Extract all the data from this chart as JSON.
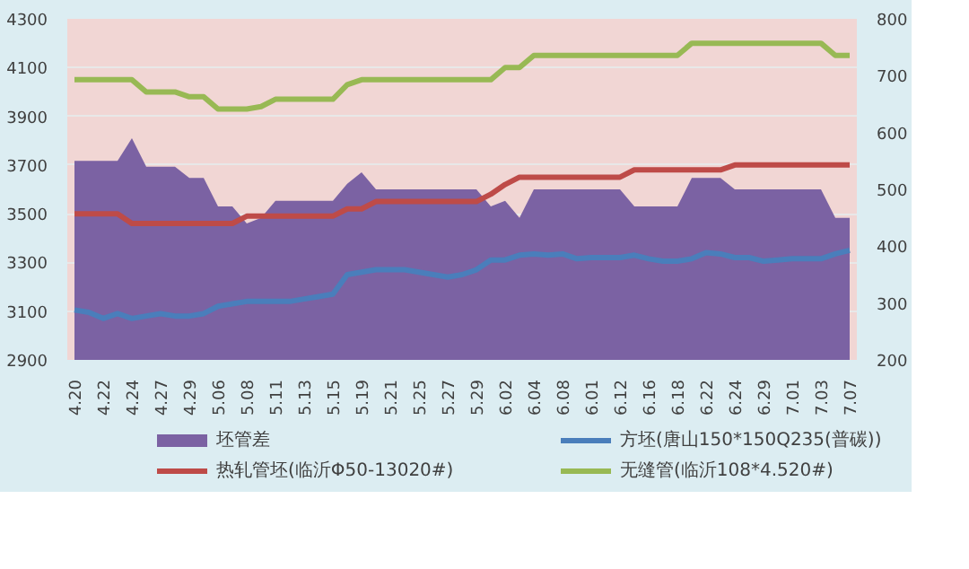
{
  "chart_data": {
    "type": "line",
    "categories": [
      "4.20",
      null,
      "4.22",
      null,
      "4.24",
      null,
      "4.27",
      null,
      "4.29",
      null,
      "5.06",
      null,
      "5.08",
      null,
      "5.11",
      null,
      "5.13",
      null,
      "5.15",
      null,
      "5.19",
      null,
      "5.21",
      null,
      "5.25",
      null,
      "5.27",
      null,
      "5.29",
      null,
      "6.02",
      null,
      "6.04",
      null,
      "6.08",
      null,
      "6.01",
      null,
      "6.12",
      null,
      "6.16",
      null,
      "6.18",
      null,
      "6.22",
      null,
      "6.24",
      null,
      "6.29",
      null,
      "7.01",
      null,
      "7.03",
      null,
      "7.07"
    ],
    "series": [
      {
        "name": "坯管差",
        "type": "area",
        "axis": "y2",
        "color": "#7b62a3",
        "values": [
          550,
          550,
          550,
          550,
          590,
          540,
          540,
          540,
          520,
          520,
          470,
          470,
          440,
          450,
          480,
          480,
          480,
          480,
          480,
          510,
          530,
          500,
          500,
          500,
          500,
          500,
          500,
          500,
          500,
          470,
          480,
          450,
          500,
          500,
          500,
          500,
          500,
          500,
          500,
          470,
          470,
          470,
          470,
          520,
          520,
          520,
          500,
          500,
          500,
          500,
          500,
          500,
          500,
          450,
          450
        ]
      },
      {
        "name": "方坯(唐山150*150Q235(普碳))",
        "color": "#4a7ebb",
        "values": [
          3105,
          3095,
          3070,
          3090,
          3070,
          3080,
          3090,
          3080,
          3080,
          3090,
          3120,
          3130,
          3140,
          3140,
          3140,
          3140,
          3150,
          3160,
          3170,
          3250,
          3260,
          3270,
          3270,
          3270,
          3260,
          3250,
          3240,
          3250,
          3270,
          3310,
          3310,
          3330,
          3335,
          3330,
          3335,
          3315,
          3320,
          3320,
          3320,
          3330,
          3315,
          3305,
          3305,
          3315,
          3340,
          3335,
          3320,
          3320,
          3305,
          3310,
          3315,
          3315,
          3315,
          3335,
          3350
        ]
      },
      {
        "name": "热轧管坯(临沂Φ50-13020#)",
        "color": "#be4b48",
        "values": [
          3500,
          3500,
          3500,
          3500,
          3460,
          3460,
          3460,
          3460,
          3460,
          3460,
          3460,
          3460,
          3490,
          3490,
          3490,
          3490,
          3490,
          3490,
          3490,
          3520,
          3520,
          3550,
          3550,
          3550,
          3550,
          3550,
          3550,
          3550,
          3550,
          3580,
          3620,
          3650,
          3650,
          3650,
          3650,
          3650,
          3650,
          3650,
          3650,
          3680,
          3680,
          3680,
          3680,
          3680,
          3680,
          3680,
          3700,
          3700,
          3700,
          3700,
          3700,
          3700,
          3700,
          3700,
          3700
        ]
      },
      {
        "name": "无缝管(临沂108*4.520#)",
        "color": "#98b954",
        "values": [
          4050,
          4050,
          4050,
          4050,
          4050,
          4000,
          4000,
          4000,
          3980,
          3980,
          3930,
          3930,
          3930,
          3940,
          3970,
          3970,
          3970,
          3970,
          3970,
          4030,
          4050,
          4050,
          4050,
          4050,
          4050,
          4050,
          4050,
          4050,
          4050,
          4050,
          4100,
          4100,
          4150,
          4150,
          4150,
          4150,
          4150,
          4150,
          4150,
          4150,
          4150,
          4150,
          4150,
          4200,
          4200,
          4200,
          4200,
          4200,
          4200,
          4200,
          4200,
          4200,
          4200,
          4150,
          4150
        ]
      }
    ],
    "ylim": [
      2900,
      4300
    ],
    "yticks": [
      2900,
      3100,
      3300,
      3500,
      3700,
      3900,
      4100,
      4300
    ],
    "y2lim": [
      200,
      800
    ],
    "y2ticks": [
      200,
      300,
      400,
      500,
      600,
      700,
      800
    ],
    "grid": "y",
    "legend": "bottom"
  }
}
